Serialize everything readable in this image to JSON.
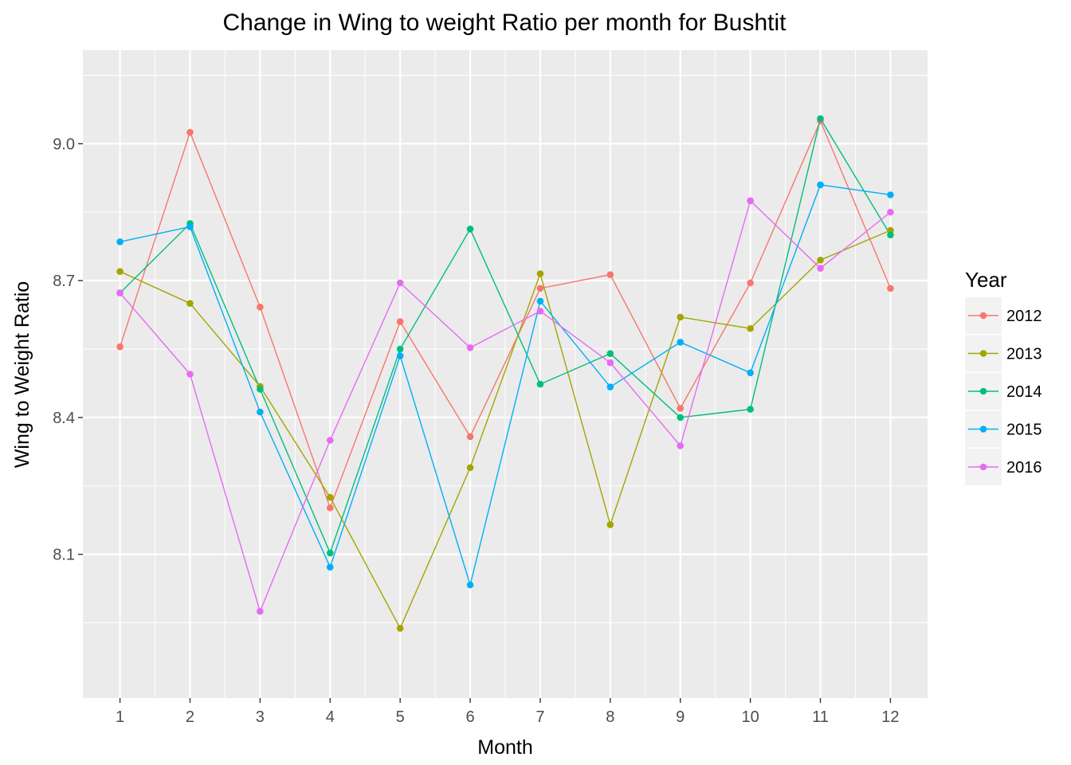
{
  "chart_data": {
    "type": "line",
    "title": "Change in Wing to weight Ratio per month for Bushtit",
    "xlabel": "Month",
    "ylabel": "Wing to Weight Ratio",
    "x": [
      1,
      2,
      3,
      4,
      5,
      6,
      7,
      8,
      9,
      10,
      11,
      12
    ],
    "xlim": [
      0.47,
      12.53
    ],
    "ylim": [
      7.785,
      9.205
    ],
    "yticks": [
      8.1,
      8.4,
      8.7,
      9.0
    ],
    "ytick_labels": [
      "8.1",
      "8.4",
      "8.7",
      "9.0"
    ],
    "xtick_labels": [
      "1",
      "2",
      "3",
      "4",
      "5",
      "6",
      "7",
      "8",
      "9",
      "10",
      "11",
      "12"
    ],
    "grid": true,
    "legend_title": "Year",
    "legend_position": "right",
    "series": [
      {
        "name": "2012",
        "color": "#F8766D",
        "values": [
          8.555,
          9.025,
          8.642,
          8.202,
          8.61,
          8.358,
          8.683,
          8.713,
          8.42,
          8.695,
          9.05,
          8.683
        ]
      },
      {
        "name": "2013",
        "color": "#A3A500",
        "values": [
          8.72,
          8.65,
          8.468,
          8.225,
          7.938,
          8.29,
          8.715,
          8.165,
          8.62,
          8.595,
          8.745,
          8.81
        ]
      },
      {
        "name": "2014",
        "color": "#00BF7D",
        "values": [
          8.673,
          8.825,
          8.462,
          8.103,
          8.55,
          8.813,
          8.473,
          8.54,
          8.4,
          8.418,
          9.055,
          8.8
        ]
      },
      {
        "name": "2015",
        "color": "#00B0F6",
        "values": [
          8.785,
          8.818,
          8.412,
          8.072,
          8.535,
          8.033,
          8.655,
          8.467,
          8.565,
          8.498,
          8.91,
          8.888
        ]
      },
      {
        "name": "2016",
        "color": "#E76BF3",
        "values": [
          8.673,
          8.495,
          7.975,
          8.35,
          8.695,
          8.553,
          8.633,
          8.52,
          8.338,
          8.875,
          8.727,
          8.85
        ]
      }
    ]
  }
}
